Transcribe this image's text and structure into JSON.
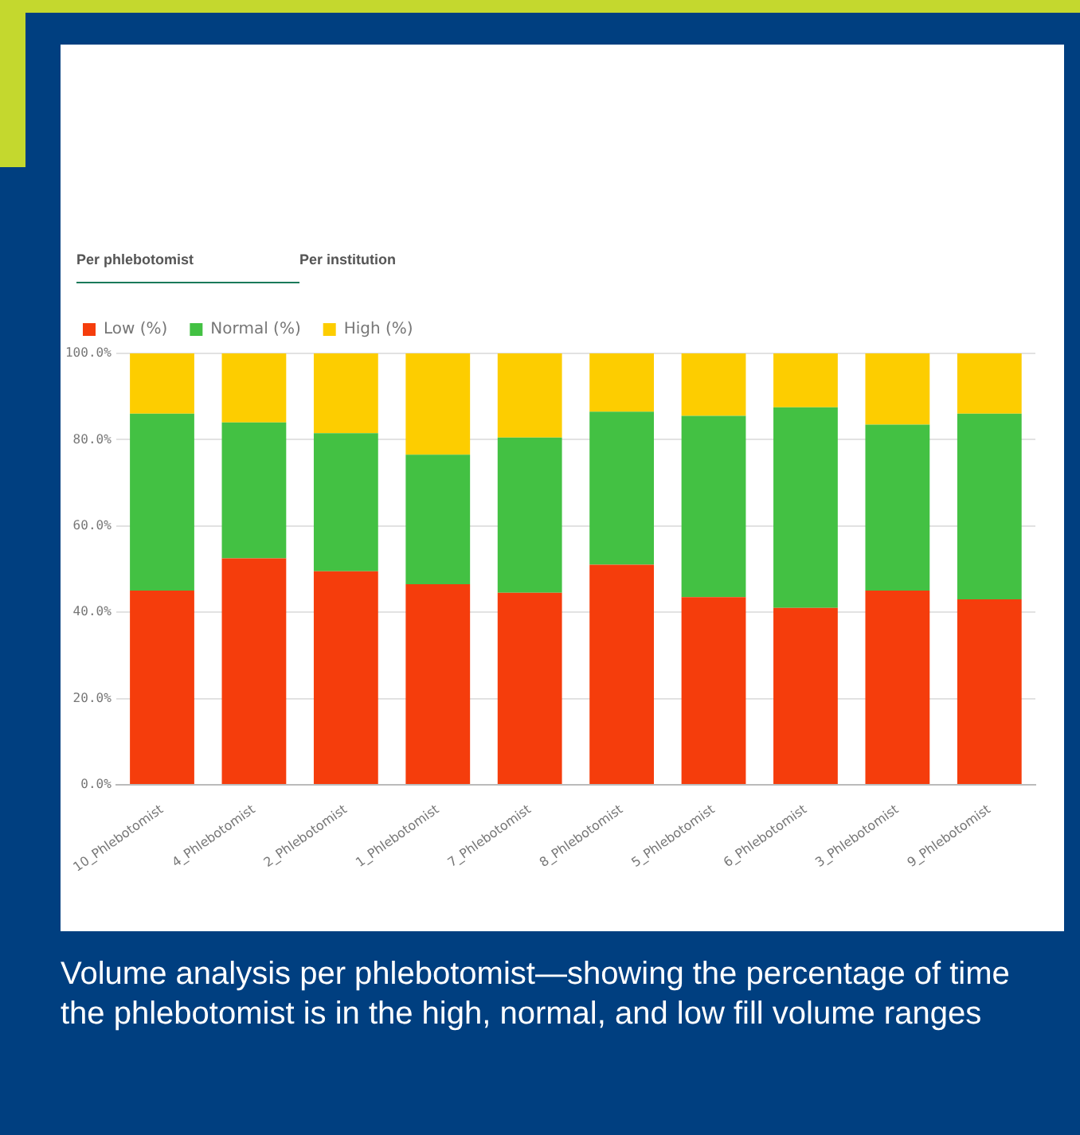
{
  "chart_data": {
    "type": "bar",
    "stacked": true,
    "title": "Volume analysis per phlebotomist—showing the percentage of time the phlebotomist is in the high, normal, and low fill volume ranges",
    "annotations": [
      "Per phlebotomist",
      "Per institution"
    ],
    "categories": [
      "10_Phlebotomist",
      "4_Phlebotomist",
      "2_Phlebotomist",
      "1_Phlebotomist",
      "7_Phlebotomist",
      "8_Phlebotomist",
      "5_Phlebotomist",
      "6_Phlebotomist",
      "3_Phlebotomist",
      "9_Phlebotomist"
    ],
    "series": [
      {
        "name": "Low (%)",
        "color": "#f53d0c",
        "values": [
          45,
          52.5,
          49.5,
          46.5,
          44.5,
          51,
          43.5,
          41,
          45,
          43
        ]
      },
      {
        "name": "Normal (%)",
        "color": "#43c143",
        "values": [
          41,
          31.5,
          32,
          30,
          36,
          35.5,
          42,
          46.5,
          38.5,
          43
        ]
      },
      {
        "name": "High (%)",
        "color": "#fdcd00",
        "values": [
          14,
          16,
          18.5,
          23.5,
          19.5,
          13.5,
          14.5,
          12.5,
          16.5,
          14
        ]
      }
    ],
    "ylim": [
      0,
      100
    ],
    "yticks": [
      {
        "value": 0,
        "label": "0.0%"
      },
      {
        "value": 20,
        "label": "20.0%"
      },
      {
        "value": 40,
        "label": "40.0%"
      },
      {
        "value": 60,
        "label": "60.0%"
      },
      {
        "value": 80,
        "label": "80.0%"
      },
      {
        "value": 100,
        "label": "100.0%"
      }
    ],
    "grid": "y",
    "legend": "top left"
  }
}
